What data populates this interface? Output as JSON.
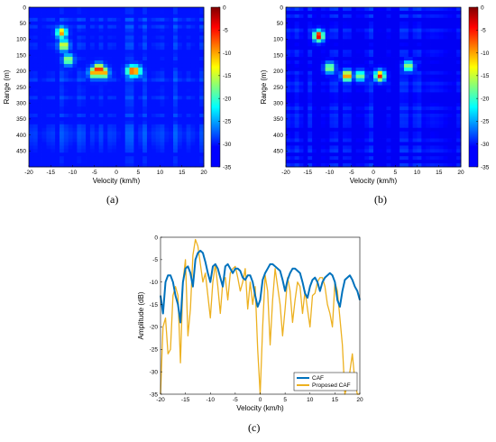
{
  "chart_data": [
    {
      "type": "heatmap",
      "panel_label": "(a)",
      "xlabel": "Velocity (km/h)",
      "ylabel": "Range (m)",
      "x_ticks": [
        "-20",
        "-15",
        "-10",
        "-5",
        "0",
        "5",
        "10",
        "15",
        "20"
      ],
      "y_ticks": [
        "0",
        "50",
        "100",
        "150",
        "200",
        "250",
        "300",
        "350",
        "400",
        "450"
      ],
      "xlim": [
        -20,
        20
      ],
      "ylim": [
        0,
        500
      ],
      "colorbar": {
        "range": [
          -35,
          0
        ],
        "ticks": [
          "0",
          "-5",
          "-10",
          "-15",
          "-20",
          "-25",
          "-30",
          "-35"
        ],
        "colormap": "jet"
      },
      "background_db": -30,
      "peaks": [
        {
          "velocity": -4,
          "range": 195,
          "db": -1
        },
        {
          "velocity": -5,
          "range": 205,
          "db": -6
        },
        {
          "velocity": -3,
          "range": 205,
          "db": -6
        },
        {
          "velocity": 3.5,
          "range": 200,
          "db": -6
        },
        {
          "velocity": 4.5,
          "range": 200,
          "db": -8
        },
        {
          "velocity": -12.5,
          "range": 80,
          "db": -9
        },
        {
          "velocity": -12,
          "range": 120,
          "db": -11
        },
        {
          "velocity": -11,
          "range": 165,
          "db": -14
        }
      ]
    },
    {
      "type": "heatmap",
      "panel_label": "(b)",
      "xlabel": "Velocity (km/h)",
      "ylabel": "Range (m)",
      "x_ticks": [
        "-20",
        "-15",
        "-10",
        "-5",
        "0",
        "5",
        "10",
        "15",
        "20"
      ],
      "y_ticks": [
        "0",
        "50",
        "100",
        "150",
        "200",
        "250",
        "300",
        "350",
        "400",
        "450"
      ],
      "xlim": [
        -20,
        20
      ],
      "ylim": [
        0,
        500
      ],
      "colorbar": {
        "range": [
          -35,
          0
        ],
        "ticks": [
          "0",
          "-5",
          "-10",
          "-15",
          "-20",
          "-25",
          "-30",
          "-35"
        ],
        "colormap": "jet"
      },
      "background_db": -31,
      "peaks": [
        {
          "velocity": -12.5,
          "range": 90,
          "db": -2
        },
        {
          "velocity": -6,
          "range": 215,
          "db": -5
        },
        {
          "velocity": 1.5,
          "range": 215,
          "db": -5
        },
        {
          "velocity": -10,
          "range": 190,
          "db": -14
        },
        {
          "velocity": 8,
          "range": 185,
          "db": -14
        },
        {
          "velocity": -3,
          "range": 215,
          "db": -15
        }
      ]
    },
    {
      "type": "line",
      "panel_label": "(c)",
      "xlabel": "Velocity (km/h)",
      "ylabel": "Amplitude (dB)",
      "xlim": [
        -20,
        20
      ],
      "ylim": [
        -35,
        0
      ],
      "x_ticks": [
        "-20",
        "-15",
        "-10",
        "-5",
        "0",
        "5",
        "10",
        "15",
        "20"
      ],
      "y_ticks": [
        "0",
        "-5",
        "-10",
        "-15",
        "-20",
        "-25",
        "-30",
        "-35"
      ],
      "legend_position": "bottom-right",
      "series": [
        {
          "name": "CAF",
          "color": "#0072BD",
          "x": [
            -20,
            -19.5,
            -19,
            -18.5,
            -18,
            -17.5,
            -17,
            -16.5,
            -16,
            -15.5,
            -15,
            -14.5,
            -14,
            -13.5,
            -13,
            -12.5,
            -12,
            -11.5,
            -11,
            -10.5,
            -10,
            -9.5,
            -9,
            -8.5,
            -8,
            -7.5,
            -7,
            -6.5,
            -6,
            -5.5,
            -5,
            -4.5,
            -4,
            -3.5,
            -3,
            -2.5,
            -2,
            -1.5,
            -1,
            -0.5,
            0,
            0.5,
            1,
            1.5,
            2,
            2.5,
            3,
            3.5,
            4,
            4.5,
            5,
            5.5,
            6,
            6.5,
            7,
            7.5,
            8,
            8.5,
            9,
            9.5,
            10,
            10.5,
            11,
            11.5,
            12,
            12.5,
            13,
            13.5,
            14,
            14.5,
            15,
            15.5,
            16,
            16.5,
            17,
            17.5,
            18,
            18.5,
            19,
            19.5,
            20
          ],
          "y": [
            -13,
            -17,
            -10,
            -8.5,
            -8.5,
            -10,
            -13,
            -15,
            -19,
            -10,
            -7,
            -6.5,
            -8,
            -11,
            -5,
            -3.5,
            -3,
            -3.5,
            -5.5,
            -8,
            -10,
            -6.5,
            -6,
            -7,
            -9,
            -11,
            -6.5,
            -6,
            -7,
            -8,
            -7,
            -7,
            -7.5,
            -9,
            -9.5,
            -8.5,
            -8.5,
            -10,
            -13,
            -15.5,
            -14,
            -9.5,
            -8,
            -7,
            -6,
            -6,
            -6.5,
            -7,
            -7.5,
            -9.5,
            -12,
            -9.5,
            -8,
            -7,
            -7,
            -7.5,
            -8,
            -10,
            -12.5,
            -13.5,
            -11,
            -9.5,
            -9,
            -10,
            -12,
            -10,
            -9,
            -8.5,
            -8,
            -8.5,
            -10,
            -14,
            -15.5,
            -12,
            -9.5,
            -9,
            -8.5,
            -9.5,
            -11,
            -12,
            -14
          ]
        },
        {
          "name": "Proposed CAF",
          "color": "#EDB120",
          "x": [
            -20,
            -19.5,
            -19,
            -18.5,
            -18,
            -17.5,
            -17,
            -16.5,
            -16,
            -15.5,
            -15,
            -14.5,
            -14,
            -13.5,
            -13,
            -12.5,
            -12,
            -11.5,
            -11,
            -10.5,
            -10,
            -9.5,
            -9,
            -8.5,
            -8,
            -7.5,
            -7,
            -6.5,
            -6,
            -5.5,
            -5,
            -4.5,
            -4,
            -3.5,
            -3,
            -2.5,
            -2,
            -1.5,
            -1,
            -0.5,
            0,
            0.5,
            1,
            1.5,
            2,
            2.5,
            3,
            3.5,
            4,
            4.5,
            5,
            5.5,
            6,
            6.5,
            7,
            7.5,
            8,
            8.5,
            9,
            9.5,
            10,
            10.5,
            11,
            11.5,
            12,
            12.5,
            13,
            13.5,
            14,
            14.5,
            15,
            15.5,
            16,
            16.5,
            17,
            17.5,
            18,
            18.5,
            19,
            19.5,
            20
          ],
          "y": [
            -35,
            -20,
            -18,
            -26,
            -25,
            -13,
            -11,
            -13,
            -28,
            -10,
            -5,
            -22,
            -16,
            -4,
            -0.5,
            -2,
            -6,
            -10,
            -8,
            -13,
            -18,
            -10,
            -6,
            -11,
            -17,
            -10,
            -9,
            -14,
            -8,
            -7,
            -6.5,
            -9,
            -12,
            -10,
            -7,
            -16,
            -10,
            -15,
            -11,
            -25,
            -35,
            -20,
            -8.5,
            -12,
            -24,
            -14,
            -7,
            -11,
            -15,
            -22,
            -16,
            -9,
            -12,
            -19,
            -14,
            -10,
            -11,
            -17,
            -12,
            -16,
            -20,
            -13,
            -12.5,
            -10,
            -9,
            -9,
            -11,
            -15,
            -17,
            -20,
            -10,
            -12,
            -18,
            -24,
            -35,
            -33,
            -30,
            -26,
            -32,
            -35,
            -35
          ]
        }
      ]
    }
  ]
}
